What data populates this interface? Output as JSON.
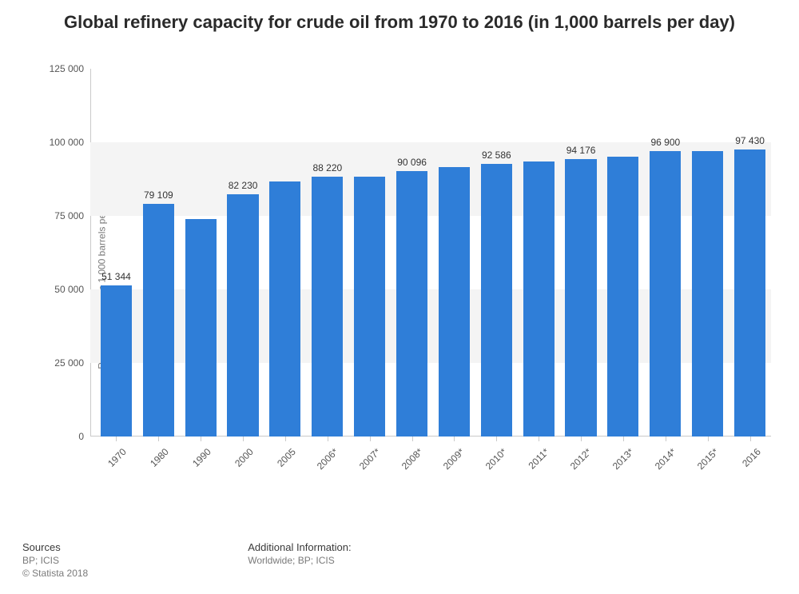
{
  "title": "Global refinery capacity for crude oil from 1970 to 2016 (in 1,000 barrels per day)",
  "chart": {
    "type": "bar",
    "y_axis_title": "Refinery capacity in 1,000 barrels per day",
    "ylim": [
      0,
      125000
    ],
    "ytick_step": 25000,
    "ytick_labels": [
      "0",
      "25 000",
      "50 000",
      "75 000",
      "100 000",
      "125 000"
    ],
    "categories": [
      "1970",
      "1980",
      "1990",
      "2000",
      "2005",
      "2006*",
      "2007*",
      "2008*",
      "2009*",
      "2010*",
      "2011*",
      "2012*",
      "2013*",
      "2014*",
      "2015*",
      "2016"
    ],
    "values": [
      51344,
      79109,
      74000,
      82230,
      86700,
      88220,
      88400,
      90096,
      91500,
      92586,
      93400,
      94176,
      95100,
      96900,
      96950,
      97430
    ],
    "value_labels": [
      "51 344",
      "79 109",
      "",
      "82 230",
      "",
      "88 220",
      "",
      "90 096",
      "",
      "92 586",
      "",
      "94 176",
      "",
      "96 900",
      "",
      "97 430"
    ],
    "bar_color": "#2f7ed8",
    "background_color": "#ffffff",
    "alt_band_color": "#f4f4f4",
    "axis_color": "#cacaca",
    "label_fontsize": 12,
    "title_fontsize": 22,
    "bar_width_ratio": 0.74
  },
  "footer": {
    "sources_heading": "Sources",
    "sources_line1": "BP; ICIS",
    "sources_line2": "© Statista 2018",
    "additional_heading": "Additional Information:",
    "additional_line1": "Worldwide; BP; ICIS"
  }
}
